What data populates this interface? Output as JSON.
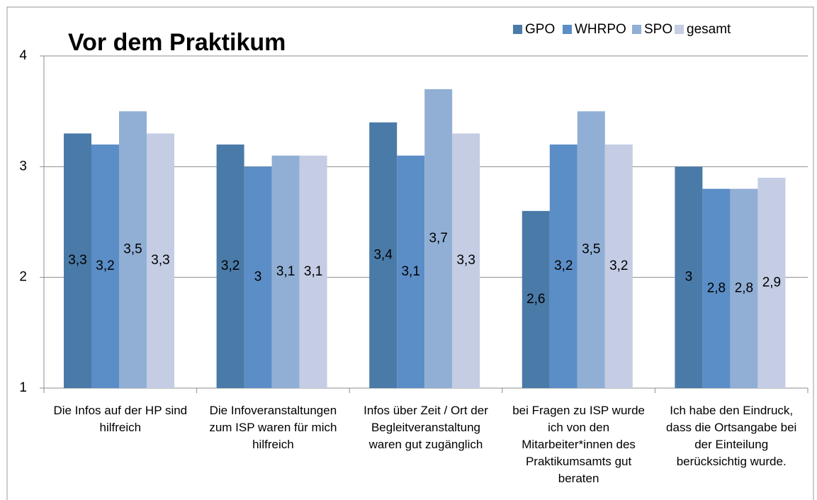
{
  "chart_data": {
    "type": "bar",
    "title": "Vor dem Praktikum",
    "categories": [
      "Die Infos auf der HP sind hilfreich",
      "Die Infoveranstaltungen zum ISP waren für mich hilfreich",
      "Infos über Zeit / Ort der Begleitveranstaltung waren gut zugänglich",
      "bei Fragen zu ISP wurde ich von den Mitarbeiter*innen des Praktikumsamts gut beraten",
      "Ich habe den Eindruck, dass die Ortsangabe bei der Einteilung berücksichtig wurde."
    ],
    "series": [
      {
        "name": "GPO",
        "color": "#4a7aa8",
        "values": [
          3.3,
          3.2,
          3.4,
          2.6,
          3
        ],
        "value_labels": [
          "3,3",
          "3,2",
          "3,4",
          "2,6",
          "3"
        ]
      },
      {
        "name": "WHRPO",
        "color": "#5b8dc6",
        "values": [
          3.2,
          3,
          3.1,
          3.2,
          2.8
        ],
        "value_labels": [
          "3,2",
          "3",
          "3,1",
          "3,2",
          "2,8"
        ]
      },
      {
        "name": "SPO",
        "color": "#91afd5",
        "values": [
          3.5,
          3.1,
          3.7,
          3.5,
          2.8
        ],
        "value_labels": [
          "3,5",
          "3,1",
          "3,7",
          "3,5",
          "2,8"
        ]
      },
      {
        "name": "gesamt",
        "color": "#c4cde4",
        "values": [
          3.3,
          3.1,
          3.3,
          3.2,
          2.9
        ],
        "value_labels": [
          "3,3",
          "3,1",
          "3,3",
          "3,2",
          "2,9"
        ]
      }
    ],
    "ylim": [
      1,
      4
    ],
    "yticks": [
      1,
      2,
      3,
      4
    ],
    "grid": true,
    "legend": "top-right"
  }
}
